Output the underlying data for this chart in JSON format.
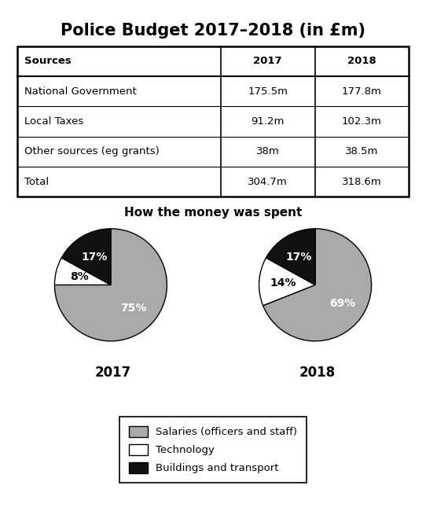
{
  "title": "Police Budget 2017–2018 (in £m)",
  "table_headers": [
    "Sources",
    "2017",
    "2018"
  ],
  "table_rows": [
    [
      "National Government",
      "175.5m",
      "177.8m"
    ],
    [
      "Local Taxes",
      "91.2m",
      "102.3m"
    ],
    [
      "Other sources (eg grants)",
      "38m",
      "38.5m"
    ],
    [
      "Total",
      "304.7m",
      "318.6m"
    ]
  ],
  "pie_title": "How the money was spent",
  "pie_2017": [
    75,
    8,
    17
  ],
  "pie_2018": [
    69,
    14,
    17
  ],
  "pie_labels_2017": [
    "75%",
    "8%",
    "17%"
  ],
  "pie_labels_2018": [
    "69%",
    "14%",
    "17%"
  ],
  "pie_colors": [
    "#aaaaaa",
    "#ffffff",
    "#111111"
  ],
  "pie_year_labels": [
    "2017",
    "2018"
  ],
  "legend_labels": [
    "Salaries (officers and staff)",
    "Technology",
    "Buildings and transport"
  ],
  "legend_colors": [
    "#aaaaaa",
    "#ffffff",
    "#111111"
  ],
  "bg_color": "#ffffff",
  "label_colors": [
    "white",
    "black",
    "white"
  ]
}
